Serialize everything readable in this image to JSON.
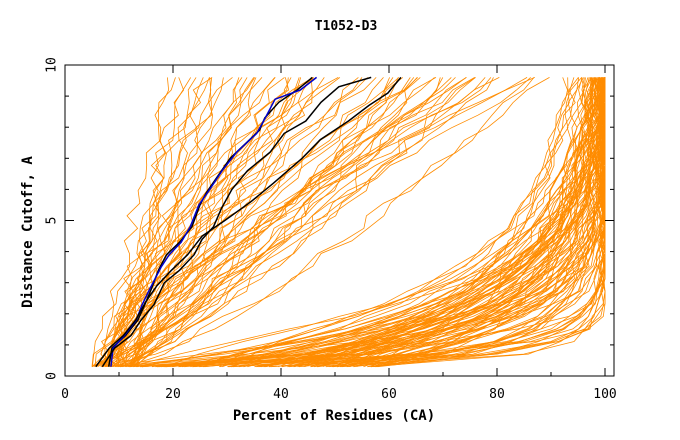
{
  "chart_data": {
    "type": "line",
    "title": "T1052-D3",
    "xlabel": "Percent of Residues (CA)",
    "ylabel": "Distance Cutoff, A",
    "xlim": [
      0,
      100
    ],
    "ylim": [
      0,
      10
    ],
    "x_ticks": [
      "0",
      "20",
      "40",
      "60",
      "80",
      "100"
    ],
    "y_ticks": [
      "0",
      "5",
      "10"
    ],
    "grid": false,
    "legend": "none",
    "colors": {
      "bundle": "#ff8c00",
      "highlight": "#0000cc",
      "reference": "#000000",
      "axis": "#000000"
    },
    "series": [
      {
        "values": [
          [
            8.1,
            0.3
          ],
          [
            8.7,
            0.9
          ],
          [
            11.2,
            1.3
          ],
          [
            13.5,
            1.8
          ],
          [
            14.8,
            2.3
          ],
          [
            16.0,
            2.8
          ],
          [
            17.3,
            3.4
          ],
          [
            18.8,
            3.9
          ],
          [
            21.2,
            4.3
          ],
          [
            23.5,
            4.8
          ],
          [
            25.0,
            5.5
          ],
          [
            26.2,
            5.9
          ],
          [
            28.6,
            6.5
          ],
          [
            30.6,
            7.0
          ],
          [
            33.6,
            7.5
          ],
          [
            36.0,
            7.9
          ],
          [
            37.0,
            8.3
          ],
          [
            39.6,
            8.8
          ],
          [
            43.0,
            9.2
          ],
          [
            45.8,
            9.6
          ]
        ]
      },
      {
        "values": [
          [
            8.5,
            0.3
          ],
          [
            8.9,
            0.9
          ],
          [
            11.0,
            1.3
          ],
          [
            13.2,
            1.8
          ],
          [
            14.3,
            2.3
          ],
          [
            15.7,
            2.8
          ],
          [
            17.8,
            3.5
          ],
          [
            19.3,
            3.9
          ],
          [
            21.5,
            4.3
          ],
          [
            23.2,
            4.8
          ],
          [
            24.8,
            5.5
          ],
          [
            26.8,
            6.0
          ],
          [
            29.1,
            6.6
          ],
          [
            31.8,
            7.2
          ],
          [
            35.5,
            7.8
          ],
          [
            37.1,
            8.3
          ],
          [
            38.9,
            8.9
          ],
          [
            43.6,
            9.2
          ],
          [
            46.6,
            9.6
          ]
        ]
      },
      {
        "values": [
          [
            6.9,
            0.3
          ],
          [
            9.2,
            0.9
          ],
          [
            12.2,
            1.3
          ],
          [
            14.1,
            1.8
          ],
          [
            16.5,
            2.3
          ],
          [
            18.4,
            3.0
          ],
          [
            21.2,
            3.4
          ],
          [
            23.9,
            3.9
          ],
          [
            25.4,
            4.4
          ],
          [
            27.5,
            4.8
          ],
          [
            29.0,
            5.4
          ],
          [
            30.9,
            6.0
          ],
          [
            33.8,
            6.6
          ],
          [
            38.0,
            7.2
          ],
          [
            40.6,
            7.8
          ],
          [
            44.6,
            8.2
          ],
          [
            47.4,
            8.8
          ],
          [
            50.7,
            9.3
          ],
          [
            56.7,
            9.6
          ]
        ]
      },
      {
        "values": [
          [
            5.7,
            0.3
          ],
          [
            8.2,
            0.9
          ],
          [
            10.8,
            1.3
          ],
          [
            13.1,
            1.8
          ],
          [
            15.0,
            2.4
          ],
          [
            17.0,
            2.9
          ],
          [
            19.7,
            3.4
          ],
          [
            22.7,
            3.9
          ],
          [
            25.4,
            4.5
          ],
          [
            29.6,
            5.0
          ],
          [
            34.4,
            5.6
          ],
          [
            38.6,
            6.2
          ],
          [
            43.9,
            7.0
          ],
          [
            47.3,
            7.6
          ],
          [
            52.5,
            8.2
          ],
          [
            56.3,
            8.7
          ],
          [
            59.8,
            9.1
          ],
          [
            62.2,
            9.6
          ]
        ]
      }
    ]
  }
}
